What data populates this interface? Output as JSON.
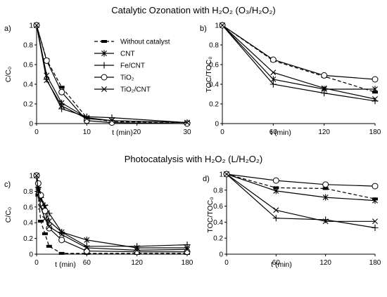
{
  "sections": [
    {
      "title": "Catalytic Ozonation with H₂O₂ (O₃/H₂O₂)"
    },
    {
      "title": "Photocatalysis with H₂O₂ (L/H₂O₂)"
    }
  ],
  "legend": [
    {
      "series": "Without catalyst",
      "marker": "dash-square",
      "dashed": true
    },
    {
      "series": "CNT",
      "marker": "asterisk",
      "dashed": false
    },
    {
      "series": "Fe/CNT",
      "marker": "plus",
      "dashed": false
    },
    {
      "series": "TiO₂",
      "marker": "circle",
      "dashed": false
    },
    {
      "series": "TiO₂/CNT",
      "marker": "x",
      "dashed": false
    }
  ],
  "chart_data": [
    {
      "panel": "a)",
      "type": "line",
      "xlabel": "t (min)",
      "ylabel": "C/C₀",
      "xlim": [
        0,
        30
      ],
      "xticks": [
        0,
        10,
        20,
        30
      ],
      "ylim": [
        0,
        1
      ],
      "yticks": [
        "0",
        "0.2",
        "0.4",
        "0.6",
        "0.8",
        "1"
      ],
      "series": [
        {
          "name": "Without catalyst",
          "x": [
            0,
            2,
            5,
            10,
            15,
            30
          ],
          "y": [
            1,
            0.65,
            0.37,
            0.06,
            0.02,
            0.01
          ]
        },
        {
          "name": "CNT",
          "x": [
            0,
            2,
            5,
            10,
            15,
            30
          ],
          "y": [
            1,
            0.49,
            0.21,
            0.06,
            0.03,
            0.01
          ]
        },
        {
          "name": "Fe/CNT",
          "x": [
            0,
            2,
            5,
            10,
            15,
            30
          ],
          "y": [
            1,
            0.45,
            0.15,
            0.07,
            0.06,
            0.01
          ]
        },
        {
          "name": "TiO₂",
          "x": [
            0,
            2,
            5,
            10,
            15,
            30
          ],
          "y": [
            1,
            0.64,
            0.32,
            0.03,
            0.01,
            0.0
          ]
        },
        {
          "name": "TiO₂/CNT",
          "x": [
            0,
            2,
            5,
            10,
            15,
            30
          ],
          "y": [
            1,
            0.44,
            0.18,
            0.05,
            0.03,
            0.01
          ]
        }
      ]
    },
    {
      "panel": "b)",
      "type": "line",
      "xlabel": "t (min)",
      "ylabel": "TOC/TOC₀",
      "xlim": [
        0,
        180
      ],
      "xticks": [
        0,
        60,
        120,
        180
      ],
      "ylim": [
        0,
        1
      ],
      "yticks": [
        "0",
        "0.2",
        "0.4",
        "0.6",
        "0.8",
        "1"
      ],
      "series": [
        {
          "name": "Without catalyst",
          "x": [
            0,
            60,
            120,
            180
          ],
          "y": [
            1,
            0.64,
            0.48,
            0.32
          ]
        },
        {
          "name": "CNT",
          "x": [
            0,
            60,
            120,
            180
          ],
          "y": [
            1,
            0.45,
            0.35,
            0.35
          ]
        },
        {
          "name": "Fe/CNT",
          "x": [
            0,
            60,
            120,
            180
          ],
          "y": [
            1,
            0.4,
            0.31,
            0.23
          ]
        },
        {
          "name": "TiO₂",
          "x": [
            0,
            60,
            120,
            180
          ],
          "y": [
            1,
            0.65,
            0.49,
            0.45
          ]
        },
        {
          "name": "TiO₂/CNT",
          "x": [
            0,
            60,
            120,
            180
          ],
          "y": [
            1,
            0.52,
            0.36,
            0.25
          ]
        }
      ]
    },
    {
      "panel": "c)",
      "type": "line",
      "xlabel": "t (min)",
      "ylabel": "C/C₀",
      "xlim": [
        0,
        180
      ],
      "xticks": [
        0,
        60,
        120,
        180
      ],
      "ylim": [
        0,
        1
      ],
      "yticks": [
        "0",
        "0.2",
        "0.4",
        "0.6",
        "0.8",
        "1"
      ],
      "series": [
        {
          "name": "Without catalyst",
          "x": [
            0,
            2,
            5,
            10,
            15,
            30,
            60,
            120,
            180
          ],
          "y": [
            1,
            0.75,
            0.42,
            0.26,
            0.1,
            0.01,
            0.01,
            0.01,
            0.01
          ]
        },
        {
          "name": "CNT",
          "x": [
            0,
            2,
            5,
            10,
            15,
            30,
            60,
            120,
            180
          ],
          "y": [
            1,
            0.82,
            0.7,
            0.6,
            0.42,
            0.28,
            0.18,
            0.08,
            0.08
          ]
        },
        {
          "name": "Fe/CNT",
          "x": [
            0,
            2,
            5,
            10,
            15,
            30,
            60,
            120,
            180
          ],
          "y": [
            1,
            0.85,
            0.72,
            0.62,
            0.52,
            0.28,
            0.1,
            0.1,
            0.12
          ]
        },
        {
          "name": "TiO₂",
          "x": [
            0,
            2,
            5,
            10,
            15,
            30,
            60,
            120,
            180
          ],
          "y": [
            1,
            0.9,
            0.75,
            0.55,
            0.33,
            0.18,
            0.04,
            0.03,
            0.03
          ]
        },
        {
          "name": "TiO₂/CNT",
          "x": [
            0,
            2,
            5,
            10,
            15,
            30,
            60,
            120,
            180
          ],
          "y": [
            1,
            0.8,
            0.6,
            0.45,
            0.35,
            0.25,
            0.08,
            0.05,
            0.06
          ]
        }
      ]
    },
    {
      "panel": "d)",
      "type": "line",
      "xlabel": "t (min)",
      "ylabel": "TOC/TOC₀",
      "xlim": [
        0,
        180
      ],
      "xticks": [
        0,
        60,
        120,
        180
      ],
      "ylim": [
        0,
        1
      ],
      "yticks": [
        "0",
        "0.2",
        "0.4",
        "0.6",
        "0.8",
        "1"
      ],
      "series": [
        {
          "name": "Without catalyst",
          "x": [
            0,
            60,
            120,
            180
          ],
          "y": [
            1,
            0.83,
            0.82,
            0.69
          ]
        },
        {
          "name": "CNT",
          "x": [
            0,
            60,
            120,
            180
          ],
          "y": [
            1,
            0.79,
            0.71,
            0.67
          ]
        },
        {
          "name": "Fe/CNT",
          "x": [
            0,
            60,
            120,
            180
          ],
          "y": [
            1,
            0.45,
            0.43,
            0.33
          ]
        },
        {
          "name": "TiO₂",
          "x": [
            0,
            60,
            120,
            180
          ],
          "y": [
            1,
            0.92,
            0.87,
            0.85
          ]
        },
        {
          "name": "TiO₂/CNT",
          "x": [
            0,
            60,
            120,
            180
          ],
          "y": [
            1,
            0.55,
            0.41,
            0.41
          ]
        }
      ]
    }
  ]
}
